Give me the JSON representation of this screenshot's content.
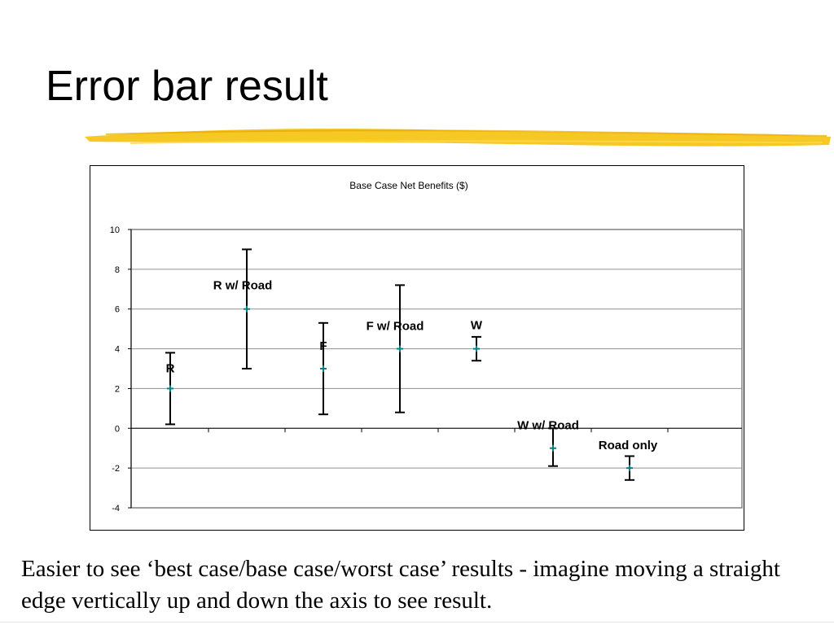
{
  "slide": {
    "title": "Error bar result",
    "caption": "Easier to see ‘best case/base case/worst case’ results - imagine moving a straight edge vertically up and down the axis to see result.",
    "accent_color": "#f5c518"
  },
  "chart_data": {
    "type": "scatter",
    "title": "Base Case Net Benefits ($)",
    "xlabel": "",
    "ylabel": "",
    "ylim": [
      -4,
      10
    ],
    "yticks": [
      -4,
      -2,
      0,
      2,
      4,
      6,
      8,
      10
    ],
    "grid": true,
    "legend": "none",
    "marker_color": "#008080",
    "errorbar_color": "#000000",
    "points": [
      {
        "label": "R",
        "x": 1,
        "y": 2,
        "low": 0.2,
        "high": 3.8
      },
      {
        "label": "R w/ Road",
        "x": 2,
        "y": 6,
        "low": 3,
        "high": 9
      },
      {
        "label": "F",
        "x": 3,
        "y": 3,
        "low": 0.7,
        "high": 5.3
      },
      {
        "label": "F w/ Road",
        "x": 4,
        "y": 4,
        "low": 0.8,
        "high": 7.2
      },
      {
        "label": "W",
        "x": 5,
        "y": 4,
        "low": 3.4,
        "high": 4.6
      },
      {
        "label": "W w/ Road",
        "x": 6,
        "y": -1,
        "low": -1.9,
        "high": 0
      },
      {
        "label": "Road only",
        "x": 7,
        "y": -2,
        "low": -2.6,
        "high": -1.4
      }
    ]
  }
}
